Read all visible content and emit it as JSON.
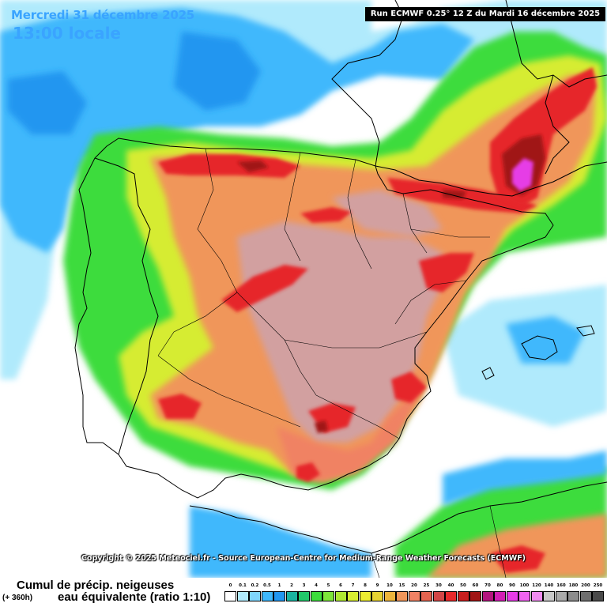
{
  "header": {
    "date": "Mercredi 31 décembre 2025",
    "time": "13:00 locale",
    "run": "Run ECMWF 0.25° 12 Z du Mardi 16 décembre 2025"
  },
  "copyright": "Copyright © 2025 Meteociel.fr - Source European-Centre for Medium-Range Weather Forecasts (ECMWF)",
  "footer": {
    "product": "Cumul de précip. neigeuses",
    "horizon": "(+ 360h)",
    "unit": "eau équivalente (ratio 1:10)"
  },
  "legend": {
    "levels": [
      "0",
      "0.1",
      "0.2",
      "0.5",
      "1",
      "2",
      "3",
      "4",
      "5",
      "6",
      "7",
      "8",
      "9",
      "10",
      "15",
      "20",
      "25",
      "30",
      "40",
      "50",
      "60",
      "70",
      "80",
      "90",
      "100",
      "120",
      "140",
      "160",
      "180",
      "200",
      "250"
    ],
    "colors": [
      "#ffffff",
      "#b0eafc",
      "#7fd6fc",
      "#3fb8fc",
      "#2196f0",
      "#1ab3a0",
      "#21c86a",
      "#3ddc3d",
      "#7de43a",
      "#aee832",
      "#d6ec32",
      "#ecec32",
      "#e6d232",
      "#ecb43c",
      "#f0965a",
      "#f08264",
      "#e46450",
      "#d24646",
      "#e6282a",
      "#c81e1e",
      "#a01414",
      "#b4147e",
      "#d21eb4",
      "#e63ce6",
      "#f064f0",
      "#f08cf0",
      "#c8c8c8",
      "#aaaaaa",
      "#8c8c8c",
      "#6e6e6e",
      "#4a4a4a"
    ]
  },
  "map_colors": {
    "sea": "#ffffff",
    "light_blue": "#b0eafc",
    "blue": "#3fb8fc",
    "deep_blue": "#2196f0",
    "green": "#3ddc3d",
    "lime": "#aee832",
    "yellow": "#ecec32",
    "orange": "#f0965a",
    "salmon": "#f08264",
    "mauve": "#d2a0a0",
    "red": "#e6282a",
    "dark_red": "#a01414",
    "magenta": "#e63ce6",
    "border": "#000000"
  }
}
